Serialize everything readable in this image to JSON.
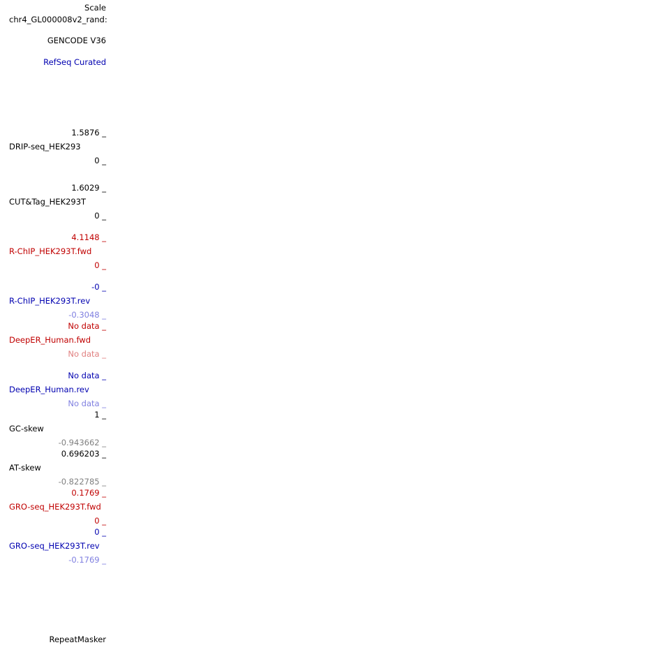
{
  "header": {
    "scale_label": "Scale",
    "chrom_label": "chr4_GL000008v2_rand:"
  },
  "tracks": {
    "gencode": {
      "label": "GENCODE V36"
    },
    "refseq": {
      "label": "RefSeq Curated"
    },
    "drip": {
      "max": "1.5876 _",
      "label": "DRIP-seq_HEK293",
      "min": "0 _"
    },
    "cuttag": {
      "max": "1.6029 _",
      "label": "CUT&Tag_HEK293T",
      "min": "0 _"
    },
    "rchip_fwd": {
      "max": "4.1148 _",
      "label": "R-ChIP_HEK293T.fwd",
      "min": "0 _"
    },
    "rchip_rev": {
      "max": "-0 _",
      "label": "R-ChIP_HEK293T.rev",
      "min": "-0.3048 _"
    },
    "deeper_fwd": {
      "max": "No data _",
      "label": "DeepER_Human.fwd",
      "min": "No data _"
    },
    "deeper_rev": {
      "max": "No data _",
      "label": "DeepER_Human.rev",
      "min": "No data _"
    },
    "gc_skew": {
      "max": "1 _",
      "label": "GC-skew",
      "min": "-0.943662 _"
    },
    "at_skew": {
      "max": "0.696203 _",
      "label": "AT-skew",
      "min": "-0.822785 _"
    },
    "gro_fwd": {
      "max": "0.1769 _",
      "label": "GRO-seq_HEK293T.fwd",
      "min": "0 _"
    },
    "gro_rev": {
      "max": "0 _",
      "label": "GRO-seq_HEK293T.rev",
      "min": "-0.1769 _"
    },
    "repeatmasker": {
      "label": "RepeatMasker"
    }
  },
  "colors": {
    "black": "#000000",
    "red": "#c00000",
    "blue": "#0000b0",
    "light_red": "#e07f7f",
    "light_blue": "#7f7fe0",
    "grey": "#808080"
  }
}
